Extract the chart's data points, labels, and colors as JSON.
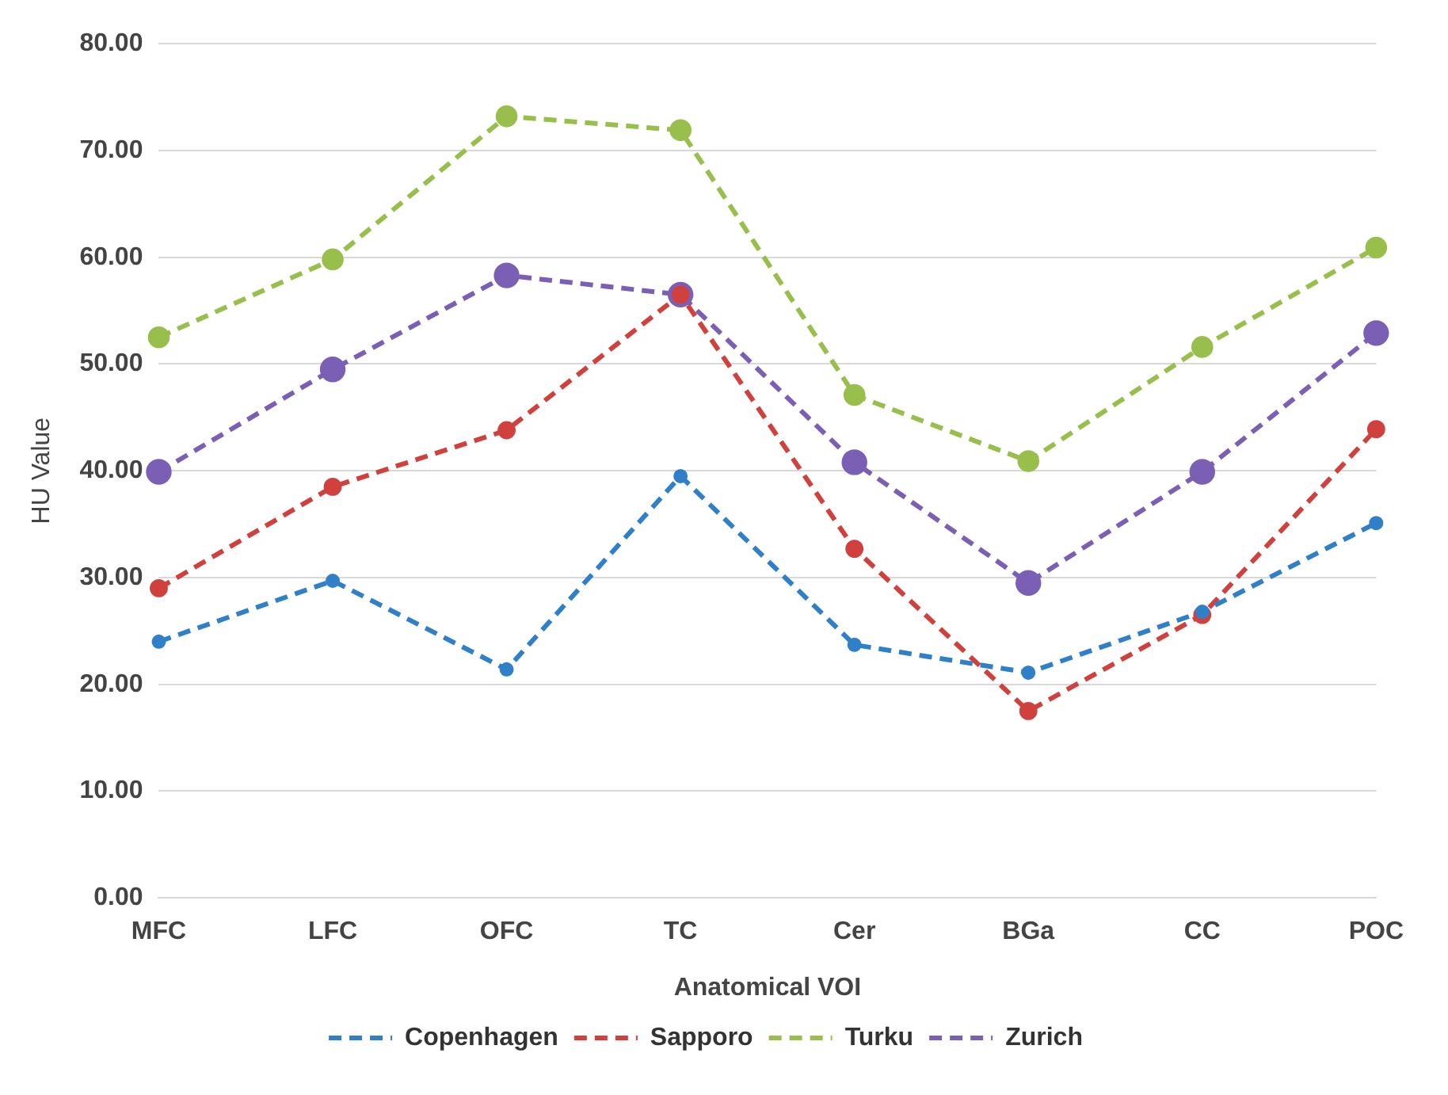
{
  "chart_data": {
    "type": "line",
    "xlabel": "Anatomical VOI",
    "ylabel": "HU Value",
    "categories": [
      "MFC",
      "LFC",
      "OFC",
      "TC",
      "Cer",
      "BGa",
      "CC",
      "POC"
    ],
    "series": [
      {
        "name": "Copenhagen",
        "color": "#2f7fc9",
        "values": [
          24.0,
          29.7,
          21.4,
          39.5,
          23.7,
          21.1,
          26.8,
          35.1
        ]
      },
      {
        "name": "Sapporo",
        "color": "#d0413d",
        "values": [
          29.0,
          38.5,
          43.8,
          56.5,
          32.7,
          17.5,
          26.5,
          43.9
        ]
      },
      {
        "name": "Turku",
        "color": "#98bf4c",
        "values": [
          52.5,
          59.8,
          73.2,
          71.9,
          47.1,
          40.9,
          51.6,
          60.9
        ]
      },
      {
        "name": "Zurich",
        "color": "#7b5fb5",
        "values": [
          39.9,
          49.5,
          58.3,
          56.5,
          40.8,
          29.5,
          39.9,
          52.9
        ]
      }
    ],
    "ylim": [
      0,
      80
    ],
    "yticks": [
      {
        "value": 0,
        "label": "0.00"
      },
      {
        "value": 10,
        "label": "10.00"
      },
      {
        "value": 20,
        "label": "20.00"
      },
      {
        "value": 30,
        "label": "30.00"
      },
      {
        "value": 40,
        "label": "40.00"
      },
      {
        "value": 50,
        "label": "50.00"
      },
      {
        "value": 60,
        "label": "60.00"
      },
      {
        "value": 70,
        "label": "70.00"
      },
      {
        "value": 80,
        "label": "80.00"
      }
    ],
    "grid": "y",
    "legend": "bottom",
    "marker": "circle",
    "line_style": "dashed"
  }
}
